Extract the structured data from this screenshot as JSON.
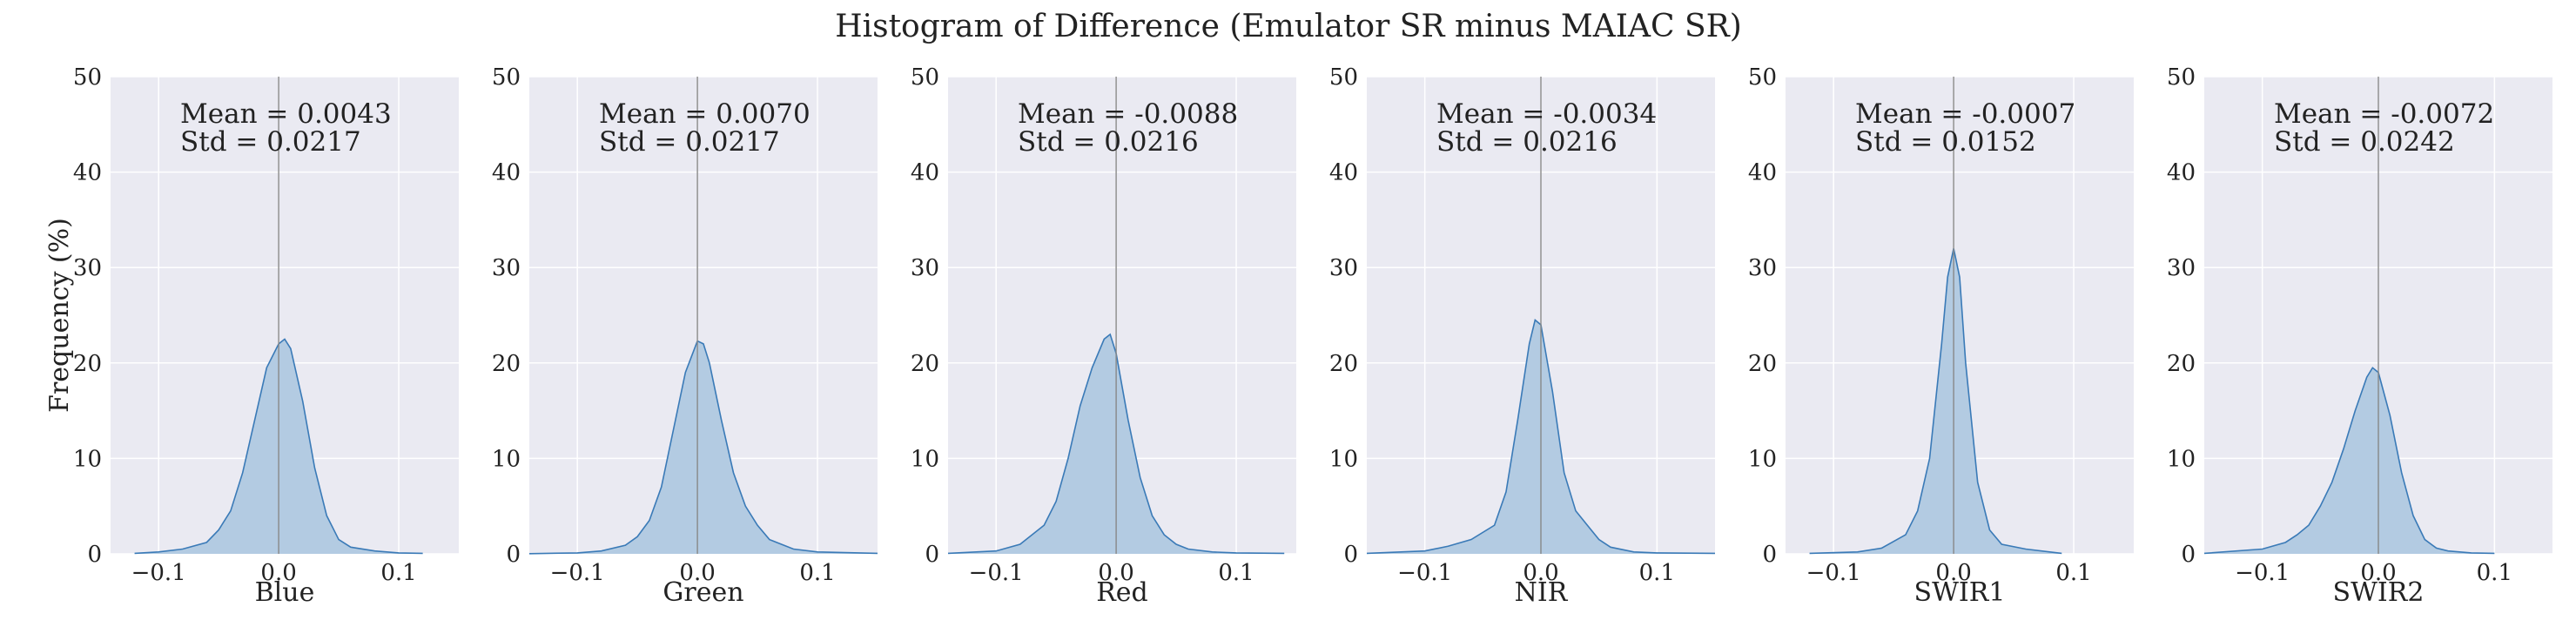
{
  "figure": {
    "title": "Histogram of Difference (Emulator SR minus MAIAC SR)",
    "ylabel": "Frequency (%)",
    "fill_color": "#b3cbe2",
    "line_color": "#3a7ab7",
    "panel_bg": "#eaeaf2",
    "vline_color": "#888888"
  },
  "chart_data": [
    {
      "type": "area",
      "xlabel": "Blue",
      "mean_label": "Mean = 0.0043",
      "std_label": "Std = 0.0217",
      "xlim": [
        -0.14,
        0.15
      ],
      "ylim": [
        0,
        50
      ],
      "xticks": [
        -0.1,
        0.0,
        0.1
      ],
      "xtick_labels": [
        "−0.1",
        "0.0",
        "0.1"
      ],
      "yticks": [
        0,
        10,
        20,
        30,
        40,
        50
      ],
      "ytick_labels": [
        "0",
        "10",
        "20",
        "30",
        "40",
        "50"
      ],
      "mean_line": 0.0,
      "x": [
        -0.12,
        -0.1,
        -0.08,
        -0.06,
        -0.05,
        -0.04,
        -0.03,
        -0.02,
        -0.01,
        0.0,
        0.005,
        0.01,
        0.02,
        0.03,
        0.04,
        0.05,
        0.06,
        0.08,
        0.1,
        0.12
      ],
      "y": [
        0.05,
        0.2,
        0.5,
        1.2,
        2.5,
        4.5,
        8.5,
        14.0,
        19.5,
        22.0,
        22.5,
        21.5,
        16.0,
        9.0,
        4.0,
        1.5,
        0.7,
        0.3,
        0.1,
        0.05
      ]
    },
    {
      "type": "area",
      "xlabel": "Green",
      "mean_label": "Mean = 0.0070",
      "std_label": "Std = 0.0217",
      "xlim": [
        -0.14,
        0.15
      ],
      "ylim": [
        0,
        50
      ],
      "xticks": [
        -0.1,
        0.0,
        0.1
      ],
      "xtick_labels": [
        "−0.1",
        "0.0",
        "0.1"
      ],
      "yticks": [
        0,
        10,
        20,
        30,
        40,
        50
      ],
      "ytick_labels": [
        "0",
        "10",
        "20",
        "30",
        "40",
        "50"
      ],
      "mean_line": 0.0,
      "x": [
        -0.14,
        -0.1,
        -0.08,
        -0.06,
        -0.05,
        -0.04,
        -0.03,
        -0.02,
        -0.01,
        0.0,
        0.005,
        0.01,
        0.02,
        0.03,
        0.04,
        0.05,
        0.06,
        0.08,
        0.1,
        0.15
      ],
      "y": [
        0.02,
        0.1,
        0.3,
        0.9,
        1.8,
        3.5,
        7.0,
        13.0,
        19.0,
        22.3,
        22.0,
        20.0,
        14.0,
        8.5,
        5.0,
        3.0,
        1.5,
        0.5,
        0.2,
        0.05
      ]
    },
    {
      "type": "area",
      "xlabel": "Red",
      "mean_label": "Mean = -0.0088",
      "std_label": "Std = 0.0216",
      "xlim": [
        -0.14,
        0.15
      ],
      "ylim": [
        0,
        50
      ],
      "xticks": [
        -0.1,
        0.0,
        0.1
      ],
      "xtick_labels": [
        "−0.1",
        "0.0",
        "0.1"
      ],
      "yticks": [
        0,
        10,
        20,
        30,
        40,
        50
      ],
      "ytick_labels": [
        "0",
        "10",
        "20",
        "30",
        "40",
        "50"
      ],
      "mean_line": 0.0,
      "x": [
        -0.14,
        -0.1,
        -0.08,
        -0.06,
        -0.05,
        -0.04,
        -0.03,
        -0.02,
        -0.01,
        -0.005,
        0.0,
        0.01,
        0.02,
        0.03,
        0.04,
        0.05,
        0.06,
        0.08,
        0.1,
        0.14
      ],
      "y": [
        0.05,
        0.3,
        1.0,
        3.0,
        5.5,
        10.0,
        15.5,
        19.5,
        22.5,
        23.0,
        21.0,
        14.0,
        8.0,
        4.0,
        2.0,
        1.0,
        0.5,
        0.2,
        0.1,
        0.05
      ]
    },
    {
      "type": "area",
      "xlabel": "NIR",
      "mean_label": "Mean = -0.0034",
      "std_label": "Std = 0.0216",
      "xlim": [
        -0.15,
        0.15
      ],
      "ylim": [
        0,
        50
      ],
      "xticks": [
        -0.1,
        0.0,
        0.1
      ],
      "xtick_labels": [
        "−0.1",
        "0.0",
        "0.1"
      ],
      "yticks": [
        0,
        10,
        20,
        30,
        40,
        50
      ],
      "ytick_labels": [
        "0",
        "10",
        "20",
        "30",
        "40",
        "50"
      ],
      "mean_line": 0.0,
      "x": [
        -0.15,
        -0.1,
        -0.08,
        -0.06,
        -0.04,
        -0.03,
        -0.02,
        -0.01,
        -0.005,
        0.0,
        0.01,
        0.02,
        0.03,
        0.04,
        0.05,
        0.06,
        0.08,
        0.1,
        0.15
      ],
      "y": [
        0.05,
        0.3,
        0.8,
        1.5,
        3.0,
        6.5,
        14.0,
        22.0,
        24.5,
        24.0,
        17.0,
        8.5,
        4.5,
        3.0,
        1.5,
        0.7,
        0.2,
        0.1,
        0.05
      ]
    },
    {
      "type": "area",
      "xlabel": "SWIR1",
      "mean_label": "Mean = -0.0007",
      "std_label": "Std = 0.0152",
      "xlim": [
        -0.14,
        0.15
      ],
      "ylim": [
        0,
        50
      ],
      "xticks": [
        -0.1,
        0.0,
        0.1
      ],
      "xtick_labels": [
        "−0.1",
        "0.0",
        "0.1"
      ],
      "yticks": [
        0,
        10,
        20,
        30,
        40,
        50
      ],
      "ytick_labels": [
        "0",
        "10",
        "20",
        "30",
        "40",
        "50"
      ],
      "mean_line": 0.0,
      "x": [
        -0.12,
        -0.08,
        -0.06,
        -0.04,
        -0.03,
        -0.02,
        -0.01,
        -0.005,
        0.0,
        0.005,
        0.01,
        0.02,
        0.03,
        0.04,
        0.06,
        0.08,
        0.09
      ],
      "y": [
        0.05,
        0.2,
        0.6,
        2.0,
        4.5,
        10.0,
        22.0,
        29.0,
        32.0,
        29.0,
        20.0,
        7.5,
        2.5,
        1.0,
        0.5,
        0.2,
        0.05
      ]
    },
    {
      "type": "area",
      "xlabel": "SWIR2",
      "mean_label": "Mean = -0.0072",
      "std_label": "Std = 0.0242",
      "xlim": [
        -0.15,
        0.15
      ],
      "ylim": [
        0,
        50
      ],
      "xticks": [
        -0.1,
        0.0,
        0.1
      ],
      "xtick_labels": [
        "−0.1",
        "0.0",
        "0.1"
      ],
      "yticks": [
        0,
        10,
        20,
        30,
        40,
        50
      ],
      "ytick_labels": [
        "0",
        "10",
        "20",
        "30",
        "40",
        "50"
      ],
      "mean_line": 0.0,
      "x": [
        -0.15,
        -0.1,
        -0.08,
        -0.07,
        -0.06,
        -0.05,
        -0.04,
        -0.03,
        -0.02,
        -0.01,
        -0.005,
        0.0,
        0.01,
        0.02,
        0.03,
        0.04,
        0.05,
        0.06,
        0.08,
        0.1
      ],
      "y": [
        0.05,
        0.5,
        1.2,
        2.0,
        3.0,
        5.0,
        7.5,
        11.0,
        15.0,
        18.5,
        19.5,
        19.0,
        14.5,
        8.5,
        4.0,
        1.5,
        0.6,
        0.3,
        0.1,
        0.05
      ]
    }
  ]
}
